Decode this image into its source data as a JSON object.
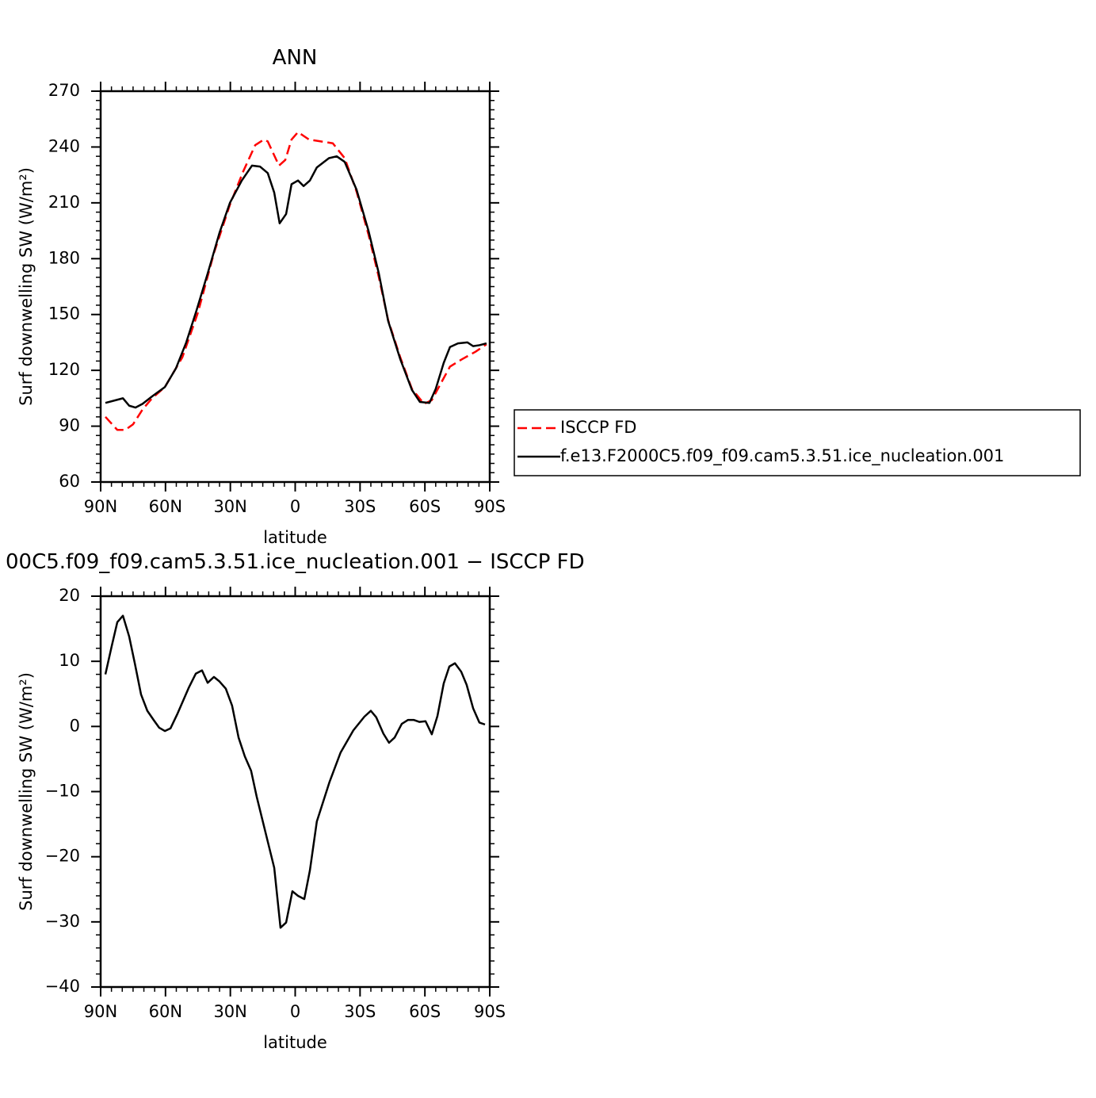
{
  "chart_data": [
    {
      "type": "line",
      "title": "ANN",
      "xlabel": "latitude",
      "ylabel": "Surf downwelling SW (W/m²)",
      "xlim": [
        90,
        -90
      ],
      "xticks": [
        {
          "value": 90,
          "label": "90N"
        },
        {
          "value": 60,
          "label": "60N"
        },
        {
          "value": 30,
          "label": "30N"
        },
        0,
        {
          "value": -30,
          "label": "30S"
        },
        {
          "value": -60,
          "label": "60S"
        },
        {
          "value": -90,
          "label": "90S"
        }
      ],
      "ylim": [
        60,
        270
      ],
      "yticks": [
        60,
        90,
        120,
        150,
        180,
        210,
        240,
        270
      ],
      "legend": "right",
      "series": [
        {
          "name": "ISCCP FD",
          "color": "#ff0000",
          "dash": true,
          "x": [
            87.8,
            82.3,
            78.6,
            75,
            70.6,
            66.2,
            60.3,
            52.2,
            45,
            37.6,
            30.2,
            24,
            18.5,
            14.5,
            12.7,
            7.5,
            4.6,
            1.7,
            -1.3,
            -6.4,
            -11.9,
            -17.4,
            -22.9,
            -28.4,
            -33.9,
            -38.7,
            -43,
            -48.6,
            -54,
            -59.6,
            -63.2,
            -66.9,
            -71.6,
            -77.2,
            -83.4,
            -88.5
          ],
          "values": [
            95,
            88,
            88,
            91,
            99,
            105,
            111,
            127,
            151,
            183,
            209,
            227,
            241,
            244,
            243,
            230,
            233,
            244,
            248,
            244,
            243,
            242,
            234,
            216,
            193,
            170,
            147,
            127,
            110,
            102,
            104,
            112,
            122,
            126,
            130,
            134
          ]
        },
        {
          "name": "f.e13.F2000C5.f09_f09.cam5.3.51.ice_nucleation.001",
          "color": "#000000",
          "dash": false,
          "x": [
            87.8,
            79.7,
            76.8,
            73.9,
            70.6,
            66.2,
            60.3,
            55.2,
            50.4,
            45.7,
            40.5,
            35,
            30.2,
            24.7,
            20,
            16.3,
            12.7,
            9.7,
            7.2,
            4.2,
            1.7,
            -1.3,
            -3.9,
            -6.8,
            -10,
            -15.6,
            -19.2,
            -22.9,
            -28.4,
            -33.9,
            -38.7,
            -43,
            -48.6,
            -54,
            -57.7,
            -62.1,
            -65,
            -68.7,
            -71.6,
            -75.3,
            -79.7,
            -82.3,
            -85.2,
            -88.5
          ],
          "values": [
            102.5,
            105,
            101,
            100,
            102,
            106,
            111,
            121,
            135,
            152,
            172,
            194,
            210,
            222,
            230,
            229.5,
            226,
            215.5,
            199,
            204,
            220,
            222,
            219,
            222,
            229,
            234,
            235,
            232,
            217,
            195,
            172,
            146.5,
            126,
            109.5,
            103,
            102.5,
            110,
            124,
            132.5,
            134.5,
            135,
            133,
            133.5,
            134.5
          ]
        }
      ]
    },
    {
      "type": "line",
      "title": "00C5.f09_f09.cam5.3.51.ice_nucleation.001 − ISCCP FD",
      "xlabel": "latitude",
      "ylabel": "Surf downwelling SW (W/m²)",
      "xlim": [
        90,
        -90
      ],
      "xticks": [
        {
          "value": 90,
          "label": "90N"
        },
        {
          "value": 60,
          "label": "60N"
        },
        {
          "value": 30,
          "label": "30N"
        },
        0,
        {
          "value": -30,
          "label": "30S"
        },
        {
          "value": -60,
          "label": "60S"
        },
        {
          "value": -90,
          "label": "90S"
        }
      ],
      "ylim": [
        -40,
        20
      ],
      "yticks": [
        {
          "value": -40,
          "label": "−40"
        },
        {
          "value": -30,
          "label": "−30"
        },
        {
          "value": -20,
          "label": "−20"
        },
        {
          "value": -10,
          "label": "−10"
        },
        0,
        10,
        20
      ],
      "series": [
        {
          "color": "#000000",
          "dash": false,
          "x": [
            87.8,
            84.9,
            82.3,
            79.7,
            76.8,
            74.2,
            71.3,
            68.4,
            65.5,
            62.9,
            60.3,
            57.7,
            54.4,
            49.3,
            46,
            43.1,
            40.5,
            37.6,
            35,
            32.1,
            29.2,
            26.2,
            23.3,
            20.4,
            17.8,
            15.2,
            12.3,
            9.7,
            6.8,
            4.2,
            1.3,
            -1.3,
            -4.2,
            -6.8,
            -10,
            -15.9,
            -21,
            -26.9,
            -32,
            -35,
            -37.5,
            -40.8,
            -43.4,
            -46,
            -49.3,
            -52.2,
            -54.8,
            -57.4,
            -60.3,
            -63.2,
            -65.8,
            -68.7,
            -71.3,
            -73.9,
            -76.8,
            -79.3,
            -82.3,
            -85.2,
            -87.8
          ],
          "values": [
            8,
            12.3,
            16,
            17,
            13.8,
            9.7,
            4.9,
            2.4,
            1,
            -0.2,
            -0.7,
            -0.3,
            2,
            5.9,
            8.1,
            8.6,
            6.7,
            7.6,
            6.9,
            5.8,
            3.2,
            -1.7,
            -4.6,
            -6.8,
            -10.8,
            -14.3,
            -18.2,
            -21.7,
            -30.9,
            -30.1,
            -25.3,
            -26,
            -26.5,
            -22.1,
            -14.6,
            -8.5,
            -4,
            -0.6,
            1.5,
            2.4,
            1.4,
            -1.1,
            -2.5,
            -1.7,
            0.4,
            1,
            1,
            0.7,
            0.8,
            -1.2,
            1.6,
            6.6,
            9.2,
            9.7,
            8.4,
            6.4,
            2.8,
            0.6,
            0.3
          ]
        }
      ]
    }
  ]
}
